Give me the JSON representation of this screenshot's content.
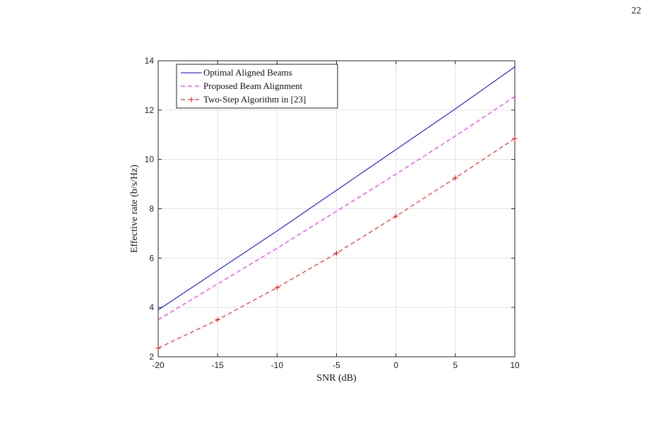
{
  "page": {
    "number": "22"
  },
  "chart_data": {
    "type": "line",
    "title": "",
    "xlabel": "SNR (dB)",
    "ylabel": "Effective rate (b/s/Hz)",
    "xlim": [
      -20,
      10
    ],
    "ylim": [
      2,
      14
    ],
    "xticks": [
      -20,
      -15,
      -10,
      -5,
      0,
      5,
      10
    ],
    "yticks": [
      2,
      4,
      6,
      8,
      10,
      12,
      14
    ],
    "grid": true,
    "legend_position": "top-left",
    "series": [
      {
        "name": "Optimal Aligned Beams",
        "color": "#0000ff",
        "style": "solid",
        "marker": "none",
        "x": [
          -20,
          -15,
          -10,
          -5,
          0,
          5,
          10
        ],
        "y": [
          3.9,
          5.5,
          7.1,
          8.75,
          10.4,
          12.05,
          13.75
        ]
      },
      {
        "name": "Proposed Beam Alignment",
        "color": "#ff00ff",
        "style": "dashed",
        "marker": "none",
        "x": [
          -20,
          -15,
          -10,
          -5,
          0,
          5,
          10
        ],
        "y": [
          3.5,
          4.95,
          6.4,
          7.9,
          9.4,
          10.95,
          12.55
        ]
      },
      {
        "name": "Two-Step Algorithm in [23]",
        "color": "#ff0000",
        "style": "dashed",
        "marker": "plus",
        "x": [
          -20,
          -15,
          -10,
          -5,
          0,
          5,
          10
        ],
        "y": [
          2.35,
          3.5,
          4.8,
          6.2,
          7.7,
          9.25,
          10.85
        ]
      }
    ]
  }
}
